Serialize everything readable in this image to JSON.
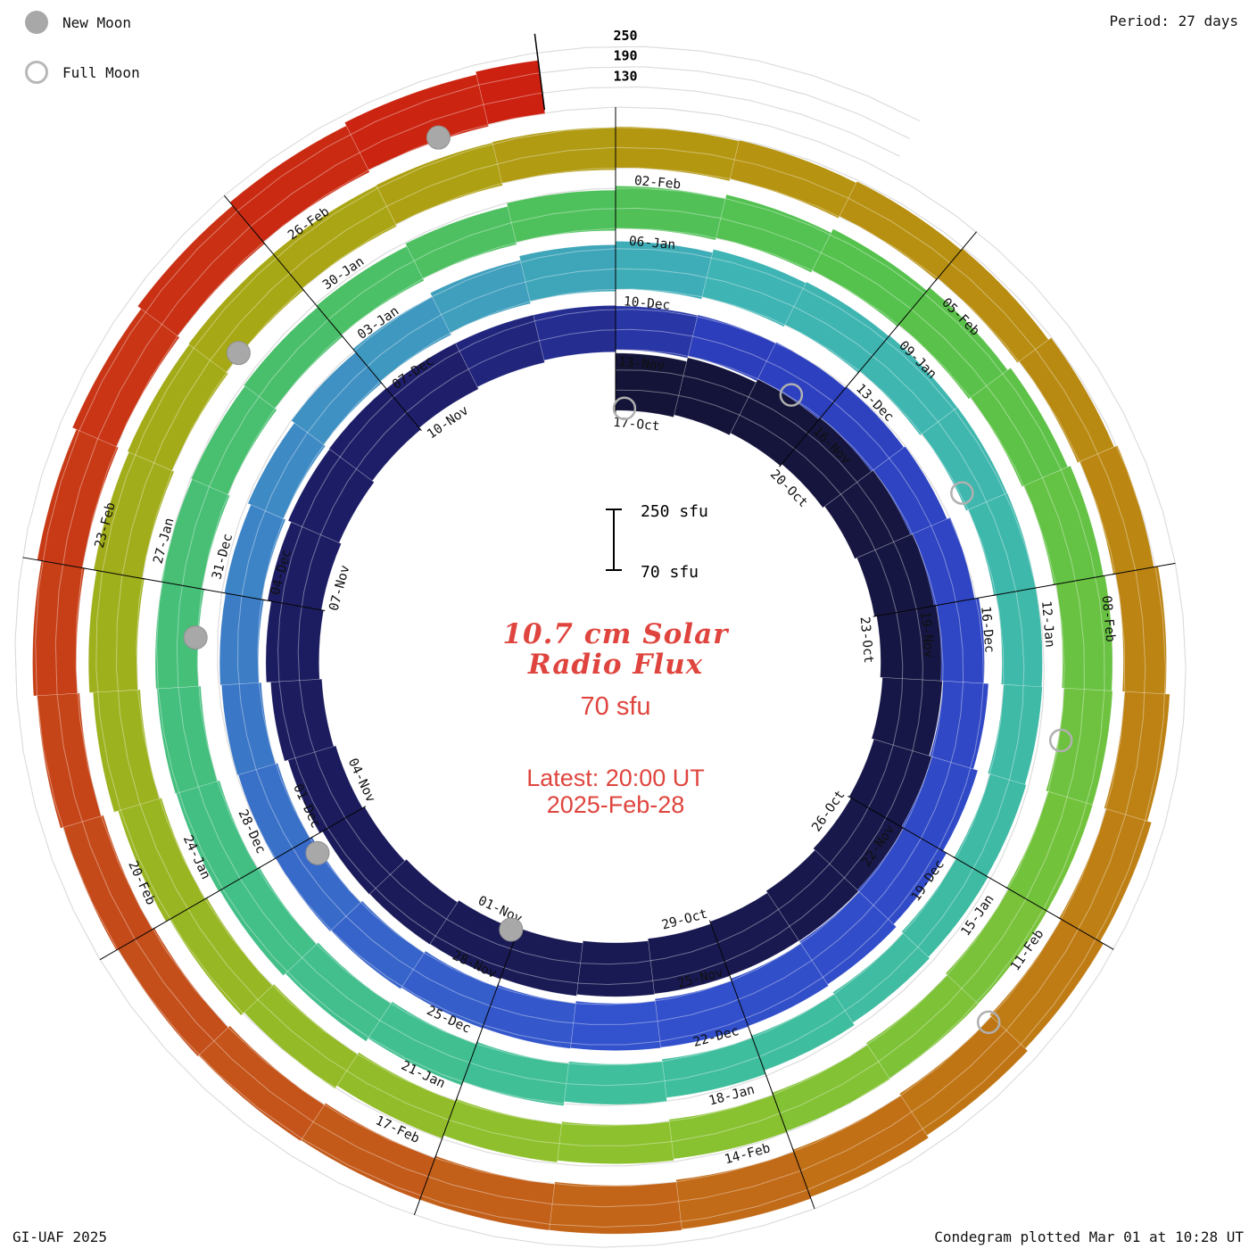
{
  "chart_data": {
    "type": "bar",
    "variant": "condegram-spiral-polar",
    "title": "10.7 cm Solar Radio Flux",
    "period_label": "Period: 27 days",
    "period_days": 27,
    "date_start": "2024-10-17",
    "date_end": "2025-02-28",
    "flux_scale": {
      "baseline_sfu": 70,
      "max_sfu": 250,
      "gridlines_sfu": [
        130,
        190,
        250
      ],
      "gridline_labels": [
        "130",
        "190",
        "250"
      ]
    },
    "scale_bar": {
      "top_label": "250 sfu",
      "bottom_label": "70 sfu"
    },
    "annotations": {
      "title_line1": "10.7 cm Solar",
      "title_line2": "Radio Flux",
      "baseline_label": "70 sfu",
      "latest_line1": "Latest: 20:00 UT",
      "latest_line2": "2025-Feb-28"
    },
    "legend": {
      "new_moon": "New Moon",
      "full_moon": "Full Moon"
    },
    "credit_left": "GI-UAF 2025",
    "credit_right": "Condegram plotted Mar 01 at 10:28 UT",
    "tick_labels": [
      {
        "day": 0,
        "label": "17-Oct"
      },
      {
        "day": 3,
        "label": "20-Oct"
      },
      {
        "day": 6,
        "label": "23-Oct"
      },
      {
        "day": 9,
        "label": "26-Oct"
      },
      {
        "day": 12,
        "label": "29-Oct"
      },
      {
        "day": 15,
        "label": "01-Nov"
      },
      {
        "day": 18,
        "label": "04-Nov"
      },
      {
        "day": 21,
        "label": "07-Nov"
      },
      {
        "day": 24,
        "label": "10-Nov"
      },
      {
        "day": 27,
        "label": "13-Nov"
      },
      {
        "day": 30,
        "label": "16-Nov"
      },
      {
        "day": 33,
        "label": "19-Nov"
      },
      {
        "day": 36,
        "label": "22-Nov"
      },
      {
        "day": 39,
        "label": "25-Nov"
      },
      {
        "day": 42,
        "label": "28-Nov"
      },
      {
        "day": 45,
        "label": "01-Dec"
      },
      {
        "day": 48,
        "label": "04-Dec"
      },
      {
        "day": 51,
        "label": "07-Dec"
      },
      {
        "day": 54,
        "label": "10-Dec"
      },
      {
        "day": 57,
        "label": "13-Dec"
      },
      {
        "day": 60,
        "label": "16-Dec"
      },
      {
        "day": 63,
        "label": "19-Dec"
      },
      {
        "day": 66,
        "label": "22-Dec"
      },
      {
        "day": 69,
        "label": "25-Dec"
      },
      {
        "day": 72,
        "label": "28-Dec"
      },
      {
        "day": 75,
        "label": "31-Dec"
      },
      {
        "day": 78,
        "label": "03-Jan"
      },
      {
        "day": 81,
        "label": "06-Jan"
      },
      {
        "day": 84,
        "label": "09-Jan"
      },
      {
        "day": 87,
        "label": "12-Jan"
      },
      {
        "day": 90,
        "label": "15-Jan"
      },
      {
        "day": 93,
        "label": "18-Jan"
      },
      {
        "day": 96,
        "label": "21-Jan"
      },
      {
        "day": 99,
        "label": "24-Jan"
      },
      {
        "day": 102,
        "label": "27-Jan"
      },
      {
        "day": 105,
        "label": "30-Jan"
      },
      {
        "day": 108,
        "label": "02-Feb"
      },
      {
        "day": 111,
        "label": "05-Feb"
      },
      {
        "day": 114,
        "label": "08-Feb"
      },
      {
        "day": 117,
        "label": "11-Feb"
      },
      {
        "day": 120,
        "label": "14-Feb"
      },
      {
        "day": 123,
        "label": "17-Feb"
      },
      {
        "day": 126,
        "label": "20-Feb"
      },
      {
        "day": 129,
        "label": "23-Feb"
      },
      {
        "day": 132,
        "label": "26-Feb"
      }
    ],
    "daily_flux_sfu": [
      240,
      245,
      250,
      255,
      260,
      258,
      252,
      248,
      250,
      255,
      248,
      240,
      235,
      230,
      228,
      225,
      220,
      215,
      218,
      222,
      228,
      232,
      235,
      230,
      222,
      215,
      208,
      200,
      195,
      192,
      190,
      188,
      192,
      198,
      205,
      212,
      218,
      222,
      220,
      215,
      210,
      205,
      200,
      198,
      195,
      192,
      188,
      185,
      182,
      185,
      190,
      196,
      202,
      208,
      212,
      215,
      212,
      208,
      202,
      196,
      190,
      185,
      182,
      180,
      178,
      180,
      185,
      190,
      196,
      200,
      204,
      206,
      204,
      200,
      196,
      192,
      188,
      185,
      184,
      186,
      190,
      196,
      202,
      208,
      214,
      218,
      220,
      218,
      214,
      208,
      202,
      196,
      192,
      188,
      186,
      185,
      188,
      192,
      198,
      204,
      210,
      214,
      216,
      214,
      210,
      205,
      200,
      196,
      192,
      188,
      186,
      185,
      188,
      192,
      198,
      204,
      210,
      215,
      218,
      220,
      218,
      214,
      208,
      202,
      198,
      195,
      194,
      196,
      200,
      206,
      212,
      218,
      224,
      228,
      230
    ],
    "moons": {
      "new": [
        {
          "date": "2024-11-01",
          "day": 15.1
        },
        {
          "date": "2024-12-01",
          "day": 44.8
        },
        {
          "date": "2024-12-30",
          "day": 74.5
        },
        {
          "date": "2025-01-29",
          "day": 104.2
        },
        {
          "date": "2025-02-28",
          "day": 133.6
        }
      ],
      "full": [
        {
          "date": "2024-10-17",
          "day": 0.15
        },
        {
          "date": "2024-11-15",
          "day": 29.5
        },
        {
          "date": "2024-12-15",
          "day": 58.8
        },
        {
          "date": "2025-01-13",
          "day": 88.5
        },
        {
          "date": "2025-02-12",
          "day": 118.05
        }
      ]
    },
    "colors": {
      "annotation_red": "#df453e",
      "moon_gray": "#a8a8a8",
      "grid_gray": "#c4c4c4",
      "tick_black": "#000000"
    },
    "colormap_stops": [
      [
        0.0,
        "#141438"
      ],
      [
        0.18,
        "#1e1e6a"
      ],
      [
        0.21,
        "#2d3fbe"
      ],
      [
        0.3,
        "#3352cd"
      ],
      [
        0.37,
        "#3f8ec4"
      ],
      [
        0.41,
        "#3fb4b4"
      ],
      [
        0.5,
        "#3fbf9b"
      ],
      [
        0.57,
        "#49bf6e"
      ],
      [
        0.62,
        "#55c24d"
      ],
      [
        0.7,
        "#8cc22f"
      ],
      [
        0.78,
        "#a8a714"
      ],
      [
        0.81,
        "#b59410"
      ],
      [
        0.87,
        "#bf7d14"
      ],
      [
        0.93,
        "#c4511b"
      ],
      [
        1.0,
        "#cc2010"
      ]
    ]
  }
}
